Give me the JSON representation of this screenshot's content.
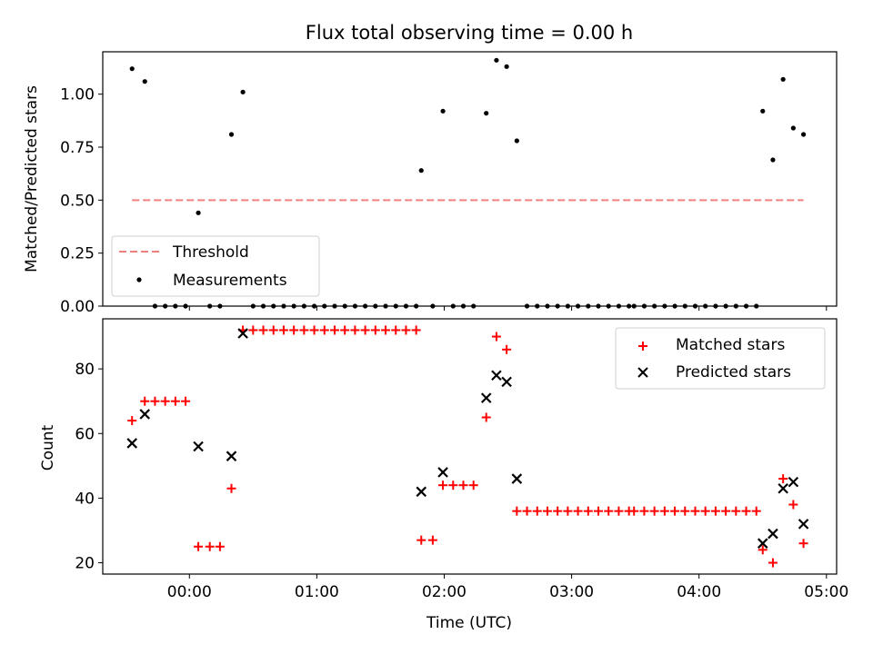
{
  "chart_data": [
    {
      "type": "scatter",
      "title": "Flux total observing time = 0.00 h",
      "xlabel": "",
      "ylabel": "Matched/Predicted stars",
      "ylim": [
        0.0,
        1.2
      ],
      "yticks": [
        "0.00",
        "0.25",
        "0.50",
        "0.75",
        "1.00"
      ],
      "legend_position": "lower-left",
      "threshold": {
        "name": "Threshold",
        "y": 0.5,
        "x_start": -0.45,
        "x_end": 4.82,
        "color": "#f08080"
      },
      "series": [
        {
          "name": "Measurements",
          "color": "#000000",
          "points": [
            [
              -0.45,
              1.12
            ],
            [
              -0.35,
              1.06
            ],
            [
              -0.27,
              0.0
            ],
            [
              -0.19,
              0.0
            ],
            [
              -0.11,
              0.0
            ],
            [
              -0.03,
              0.0
            ],
            [
              0.07,
              0.44
            ],
            [
              0.16,
              0.0
            ],
            [
              0.24,
              0.0
            ],
            [
              0.33,
              0.81
            ],
            [
              0.42,
              1.01
            ],
            [
              0.5,
              0.0
            ],
            [
              0.58,
              0.0
            ],
            [
              0.66,
              0.0
            ],
            [
              0.74,
              0.0
            ],
            [
              0.82,
              0.0
            ],
            [
              0.9,
              0.0
            ],
            [
              0.98,
              0.0
            ],
            [
              1.06,
              0.0
            ],
            [
              1.14,
              0.0
            ],
            [
              1.22,
              0.0
            ],
            [
              1.3,
              0.0
            ],
            [
              1.38,
              0.0
            ],
            [
              1.46,
              0.0
            ],
            [
              1.54,
              0.0
            ],
            [
              1.62,
              0.0
            ],
            [
              1.7,
              0.0
            ],
            [
              1.78,
              0.0
            ],
            [
              1.82,
              0.64
            ],
            [
              1.91,
              0.0
            ],
            [
              1.99,
              0.92
            ],
            [
              2.07,
              0.0
            ],
            [
              2.15,
              0.0
            ],
            [
              2.23,
              0.0
            ],
            [
              2.33,
              0.91
            ],
            [
              2.41,
              1.16
            ],
            [
              2.49,
              1.13
            ],
            [
              2.57,
              0.78
            ],
            [
              2.65,
              0.0
            ],
            [
              2.73,
              0.0
            ],
            [
              2.81,
              0.0
            ],
            [
              2.89,
              0.0
            ],
            [
              2.97,
              0.0
            ],
            [
              3.05,
              0.0
            ],
            [
              3.13,
              0.0
            ],
            [
              3.21,
              0.0
            ],
            [
              3.29,
              0.0
            ],
            [
              3.37,
              0.0
            ],
            [
              3.45,
              0.0
            ],
            [
              3.49,
              0.0
            ],
            [
              3.57,
              0.0
            ],
            [
              3.65,
              0.0
            ],
            [
              3.73,
              0.0
            ],
            [
              3.81,
              0.0
            ],
            [
              3.89,
              0.0
            ],
            [
              3.97,
              0.0
            ],
            [
              4.05,
              0.0
            ],
            [
              4.13,
              0.0
            ],
            [
              4.21,
              0.0
            ],
            [
              4.29,
              0.0
            ],
            [
              4.37,
              0.0
            ],
            [
              4.45,
              0.0
            ],
            [
              4.5,
              0.92
            ],
            [
              4.58,
              0.69
            ],
            [
              4.66,
              1.07
            ],
            [
              4.74,
              0.84
            ],
            [
              4.82,
              0.81
            ]
          ]
        }
      ]
    },
    {
      "type": "scatter",
      "title": "",
      "xlabel": "Time (UTC)",
      "ylabel": "Count",
      "ylim": [
        16.5,
        95.5
      ],
      "yticks": [
        "20",
        "40",
        "60",
        "80"
      ],
      "xlim": [
        -0.68,
        5.08
      ],
      "xticks": [
        "00:00",
        "01:00",
        "02:00",
        "03:00",
        "04:00",
        "05:00"
      ],
      "legend_position": "upper-right",
      "series": [
        {
          "name": "Matched stars",
          "color": "#ff0000",
          "marker": "+",
          "points": [
            [
              -0.45,
              64
            ],
            [
              -0.35,
              70
            ],
            [
              -0.27,
              70
            ],
            [
              -0.19,
              70
            ],
            [
              -0.11,
              70
            ],
            [
              -0.03,
              70
            ],
            [
              0.07,
              25
            ],
            [
              0.16,
              25
            ],
            [
              0.24,
              25
            ],
            [
              0.33,
              43
            ],
            [
              0.42,
              92
            ],
            [
              0.5,
              92
            ],
            [
              0.58,
              92
            ],
            [
              0.66,
              92
            ],
            [
              0.74,
              92
            ],
            [
              0.82,
              92
            ],
            [
              0.9,
              92
            ],
            [
              0.98,
              92
            ],
            [
              1.06,
              92
            ],
            [
              1.14,
              92
            ],
            [
              1.22,
              92
            ],
            [
              1.3,
              92
            ],
            [
              1.38,
              92
            ],
            [
              1.46,
              92
            ],
            [
              1.54,
              92
            ],
            [
              1.62,
              92
            ],
            [
              1.7,
              92
            ],
            [
              1.78,
              92
            ],
            [
              1.82,
              27
            ],
            [
              1.91,
              27
            ],
            [
              1.99,
              44
            ],
            [
              2.07,
              44
            ],
            [
              2.15,
              44
            ],
            [
              2.23,
              44
            ],
            [
              2.33,
              65
            ],
            [
              2.41,
              90
            ],
            [
              2.49,
              86
            ],
            [
              2.57,
              36
            ],
            [
              2.65,
              36
            ],
            [
              2.73,
              36
            ],
            [
              2.81,
              36
            ],
            [
              2.89,
              36
            ],
            [
              2.97,
              36
            ],
            [
              3.05,
              36
            ],
            [
              3.13,
              36
            ],
            [
              3.21,
              36
            ],
            [
              3.29,
              36
            ],
            [
              3.37,
              36
            ],
            [
              3.45,
              36
            ],
            [
              3.49,
              36
            ],
            [
              3.57,
              36
            ],
            [
              3.65,
              36
            ],
            [
              3.73,
              36
            ],
            [
              3.81,
              36
            ],
            [
              3.89,
              36
            ],
            [
              3.97,
              36
            ],
            [
              4.05,
              36
            ],
            [
              4.13,
              36
            ],
            [
              4.21,
              36
            ],
            [
              4.29,
              36
            ],
            [
              4.37,
              36
            ],
            [
              4.45,
              36
            ],
            [
              4.5,
              24
            ],
            [
              4.58,
              20
            ],
            [
              4.66,
              46
            ],
            [
              4.74,
              38
            ],
            [
              4.82,
              26
            ]
          ]
        },
        {
          "name": "Predicted stars",
          "color": "#000000",
          "marker": "x",
          "points": [
            [
              -0.45,
              57
            ],
            [
              -0.35,
              66
            ],
            [
              0.07,
              56
            ],
            [
              0.33,
              53
            ],
            [
              0.42,
              91
            ],
            [
              1.82,
              42
            ],
            [
              1.99,
              48
            ],
            [
              2.33,
              71
            ],
            [
              2.41,
              78
            ],
            [
              2.49,
              76
            ],
            [
              2.57,
              46
            ],
            [
              4.5,
              26
            ],
            [
              4.58,
              29
            ],
            [
              4.66,
              43
            ],
            [
              4.74,
              45
            ],
            [
              4.82,
              32
            ]
          ]
        }
      ]
    }
  ]
}
